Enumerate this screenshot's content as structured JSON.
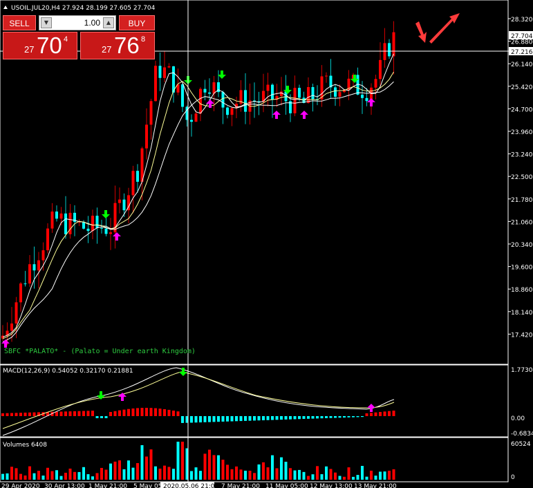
{
  "chart": {
    "symbol_header": "USOIL.JUL20,H4  27.924 28.199 27.605 27.704",
    "price_axis_labels": [
      "28.320",
      "26.880",
      "26.140",
      "25.420",
      "24.700",
      "23.960",
      "23.240",
      "22.500",
      "21.780",
      "21.060",
      "20.340",
      "19.600",
      "18.860",
      "18.140",
      "17.420"
    ],
    "current_price_tag": "27.704",
    "crosshair_price_tag": "27.216",
    "signature": "SBFC *PALATO* - (Palato = Under earth Kingdom)",
    "macd_header": "MACD(12,26,9) 0.54052 0.32170 0.21881",
    "macd_axis_labels": [
      "1.77304",
      "0.00",
      "-0.6834"
    ],
    "volume_header": "Volumes 6408",
    "volume_axis_labels": [
      "60524",
      "0"
    ],
    "time_labels": [
      "29 Apr 2020",
      "30 Apr 13:00",
      "1 May 21:00",
      "5 May 05",
      "2020.05.06 21:00",
      "7 May 21:00",
      "11 May 05:00",
      "12 May 13:00",
      "13 May 21:00"
    ],
    "colors": {
      "bull": "#ff0000",
      "bear": "#00ffff",
      "up_arrow": "#ff00ff",
      "down_arrow": "#00ff00",
      "ma": "#ffffff",
      "ma_signal": "#ffff99"
    }
  },
  "trade_panel": {
    "sell_label": "SELL",
    "buy_label": "BUY",
    "lot": "1.00",
    "sell_price_small": "27",
    "sell_price_big": "70",
    "sell_price_sup": "4",
    "buy_price_small": "27",
    "buy_price_big": "76",
    "buy_price_sup": "8"
  }
}
